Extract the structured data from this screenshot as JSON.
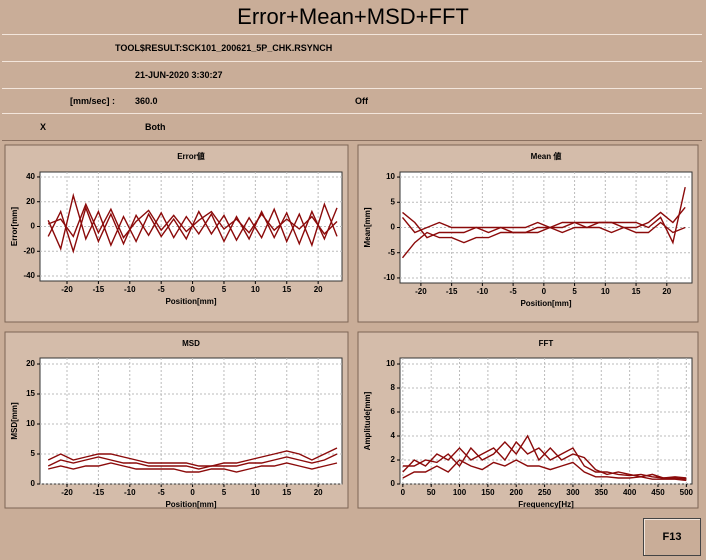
{
  "header": {
    "title": "Error+Mean+MSD+FFT"
  },
  "info": {
    "file": "TOOL$RESULT:SCK101_200621_5P_CHK.RSYNCH",
    "datetime": "21-JUN-2020  3:30:27",
    "speed_unit": "[mm/sec] :",
    "speed": "360.0",
    "mode": "Off",
    "axis": "X",
    "direction": "Both"
  },
  "chart_data": [
    {
      "type": "line",
      "title": "Error値",
      "x_label": "Position[mm]",
      "y_label": "Error[mm]",
      "x": [
        -23,
        -21,
        -19,
        -17,
        -15,
        -13,
        -11,
        -9,
        -7,
        -5,
        -3,
        -1,
        1,
        3,
        5,
        7,
        9,
        11,
        13,
        15,
        17,
        19,
        21,
        23
      ],
      "series": [
        {
          "color": "#8b0a0a",
          "values": [
            5,
            -18,
            25,
            -10,
            12,
            -15,
            8,
            -12,
            10,
            -8,
            6,
            -10,
            12,
            -6,
            9,
            -11,
            7,
            -9,
            14,
            -12,
            10,
            -15,
            18,
            -8
          ]
        },
        {
          "color": "#8b0a0a",
          "values": [
            -8,
            12,
            -20,
            15,
            -12,
            10,
            -14,
            9,
            -7,
            11,
            -9,
            8,
            -6,
            10,
            -12,
            8,
            -10,
            12,
            -9,
            11,
            -14,
            12,
            -10,
            15
          ]
        },
        {
          "color": "#8b0a0a",
          "values": [
            2,
            6,
            -8,
            18,
            -5,
            14,
            -9,
            4,
            13,
            -3,
            9,
            -4,
            5,
            12,
            -2,
            6,
            -5,
            10,
            -3,
            6,
            -2,
            8,
            -6,
            4
          ]
        }
      ],
      "xlim": [
        -24.3,
        23.8
      ],
      "ylim": [
        -44,
        44
      ],
      "xticks": [
        -20,
        -15,
        -10,
        -5,
        0,
        5,
        10,
        15,
        20
      ],
      "yticks": [
        -40,
        -20,
        0,
        20,
        40
      ],
      "grid": true
    },
    {
      "type": "line",
      "title": "Mean 値",
      "x_label": "Position[mm]",
      "y_label": "Mean[mm]",
      "x": [
        -23,
        -21,
        -19,
        -17,
        -15,
        -13,
        -11,
        -9,
        -7,
        -5,
        -3,
        -1,
        1,
        3,
        5,
        7,
        9,
        11,
        13,
        15,
        17,
        19,
        21,
        23
      ],
      "series": [
        {
          "color": "#8b0a0a",
          "values": [
            3,
            1,
            -2,
            -1,
            -1,
            -1,
            0,
            -1,
            0,
            -1,
            -1,
            0,
            0,
            0,
            1,
            0,
            1,
            1,
            0,
            0,
            1,
            3,
            1,
            4
          ]
        },
        {
          "color": "#8b0a0a",
          "values": [
            -6,
            -3,
            -1,
            -2,
            -2,
            -3,
            -2,
            -2,
            -1,
            -1,
            -1,
            -1,
            0,
            -1,
            0,
            0,
            0,
            -1,
            0,
            -1,
            -1,
            1,
            -1,
            0
          ]
        },
        {
          "color": "#8b0a0a",
          "values": [
            2,
            -1,
            0,
            1,
            0,
            0,
            0,
            0,
            0,
            0,
            0,
            1,
            0,
            1,
            1,
            1,
            1,
            1,
            1,
            1,
            0,
            2,
            -3,
            8
          ]
        }
      ],
      "xlim": [
        -23.4,
        24.1
      ],
      "ylim": [
        -11,
        11
      ],
      "xticks": [
        -20,
        -15,
        -10,
        -5,
        0,
        5,
        10,
        15,
        20
      ],
      "yticks": [
        -10,
        -5,
        0,
        5,
        10
      ],
      "grid": true
    },
    {
      "type": "line",
      "title": "MSD",
      "x_label": "Position[mm]",
      "y_label": "MSD[mm]",
      "x": [
        -23,
        -21,
        -19,
        -17,
        -15,
        -13,
        -11,
        -9,
        -7,
        -5,
        -3,
        -1,
        1,
        3,
        5,
        7,
        9,
        11,
        13,
        15,
        17,
        19,
        21,
        23
      ],
      "series": [
        {
          "color": "#8b0a0a",
          "values": [
            3,
            4,
            3.5,
            4,
            4.5,
            4,
            3.5,
            3.5,
            3,
            3,
            3,
            3,
            2.5,
            3,
            3,
            3,
            3.5,
            3.5,
            4,
            4.5,
            4,
            3.5,
            4,
            5
          ]
        },
        {
          "color": "#8b0a0a",
          "values": [
            2.5,
            3,
            2.5,
            3,
            3,
            3.5,
            3,
            2.5,
            2.5,
            2.5,
            2.5,
            2,
            2,
            2.5,
            2.5,
            2,
            2.5,
            3,
            3,
            3.5,
            3,
            2.5,
            3,
            3.5
          ]
        },
        {
          "color": "#8b0a0a",
          "values": [
            4,
            5,
            4,
            4.5,
            5,
            5,
            4.5,
            4,
            3.5,
            3.5,
            3.5,
            3.5,
            3,
            3,
            3.5,
            3.5,
            4,
            4.5,
            5,
            5.5,
            5,
            4,
            5,
            6
          ]
        }
      ],
      "xlim": [
        -24.3,
        23.8
      ],
      "ylim": [
        0,
        21
      ],
      "xticks": [
        -20,
        -15,
        -10,
        -5,
        0,
        5,
        10,
        15,
        20
      ],
      "yticks": [
        0,
        5,
        10,
        15,
        20
      ],
      "grid": true
    },
    {
      "type": "line",
      "title": "FFT",
      "x_label": "Frequency[Hz]",
      "y_label": "Amplitude[mm]",
      "x": [
        0,
        20,
        40,
        60,
        80,
        100,
        120,
        140,
        160,
        180,
        200,
        220,
        240,
        260,
        280,
        300,
        320,
        340,
        360,
        380,
        400,
        420,
        440,
        460,
        480,
        500
      ],
      "series": [
        {
          "color": "#8b0a0a",
          "values": [
            1,
            2,
            1.5,
            2.5,
            2,
            3,
            2,
            2.5,
            3,
            2,
            3.5,
            2.5,
            3,
            2,
            2.5,
            3,
            1.5,
            1,
            1,
            0.8,
            0.7,
            0.8,
            0.6,
            0.5,
            0.6,
            0.5
          ]
        },
        {
          "color": "#8b0a0a",
          "values": [
            0.5,
            1,
            1,
            1.5,
            1,
            2,
            1.5,
            1.2,
            1.8,
            1.5,
            2,
            1.5,
            1.5,
            1.2,
            1.5,
            1.8,
            1,
            0.6,
            0.6,
            0.5,
            0.5,
            0.6,
            0.4,
            0.4,
            0.4,
            0.3
          ]
        },
        {
          "color": "#8b0a0a",
          "values": [
            1.5,
            1.5,
            2,
            1.8,
            2.5,
            1.5,
            3,
            2,
            2.5,
            3.5,
            2.5,
            4,
            2,
            3,
            2,
            2.5,
            2.2,
            1.2,
            0.8,
            1,
            0.8,
            0.6,
            0.8,
            0.5,
            0.5,
            0.4
          ]
        }
      ],
      "xlim": [
        -5,
        510
      ],
      "ylim": [
        0,
        10.5
      ],
      "xticks": [
        0,
        50,
        100,
        150,
        200,
        250,
        300,
        350,
        400,
        450,
        500
      ],
      "yticks": [
        0,
        2,
        4,
        6,
        8,
        10
      ],
      "grid": true
    }
  ],
  "button": "F13"
}
